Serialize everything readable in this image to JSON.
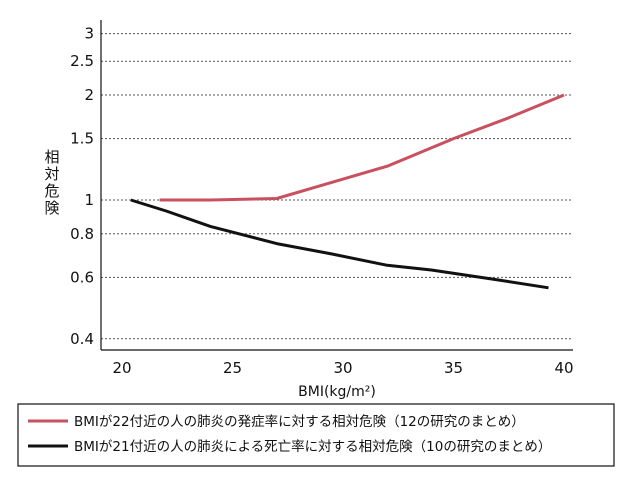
{
  "chart_data": {
    "type": "line",
    "title": "",
    "ylabel": "相対危険",
    "xlabel": "BMI(kg/m²)",
    "x_ticks": [
      20,
      25,
      30,
      35,
      40
    ],
    "y_ticks": [
      0.4,
      0.6,
      0.8,
      1,
      1.5,
      2,
      2.5,
      3
    ],
    "y_tick_labels": [
      "0.4",
      "0.6",
      "0.8",
      "1",
      "1.5",
      "2",
      "2.5",
      "3"
    ],
    "y_scale": "log",
    "xlim": [
      19,
      40.5
    ],
    "ylim": [
      0.38,
      3.1
    ],
    "grid": "horizontal-dotted",
    "series": [
      {
        "name": "BMIが22付近の人の肺炎の発症率に対する相対危険（12の研究のまとめ）",
        "color": "#c8505f",
        "x": [
          21.7,
          24,
          27,
          29,
          32,
          35,
          37.5,
          40
        ],
        "y": [
          1.0,
          1.0,
          1.01,
          1.1,
          1.25,
          1.5,
          1.72,
          2.0
        ]
      },
      {
        "name": "BMIが21付近の人の肺炎による死亡率に対する相対危険（10の研究のまとめ）",
        "color": "#111111",
        "x": [
          20.4,
          22,
          24,
          27,
          29.5,
          32,
          34,
          37,
          39.3
        ],
        "y": [
          1.0,
          0.93,
          0.84,
          0.75,
          0.7,
          0.65,
          0.63,
          0.59,
          0.56
        ]
      }
    ]
  }
}
